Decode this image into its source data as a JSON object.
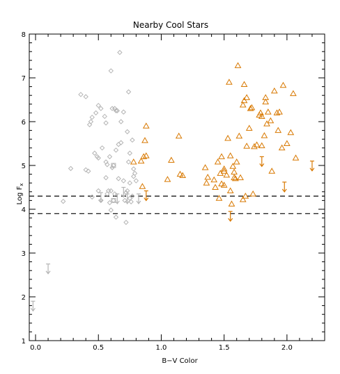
{
  "chart_data": {
    "type": "scatter",
    "title": "Nearby Cool Stars",
    "xlabel": "B−V Color",
    "ylabel": "Log F",
    "ylabel_subscript": "x",
    "xlim": [
      -0.05,
      2.3
    ],
    "ylim": [
      1,
      8
    ],
    "xticks": [
      "0.0",
      "0.5",
      "1.0",
      "1.5",
      "2.0"
    ],
    "xtick_values": [
      0.0,
      0.5,
      1.0,
      1.5,
      2.0
    ],
    "yticks": [
      "1",
      "2",
      "3",
      "4",
      "5",
      "6",
      "7",
      "8"
    ],
    "ytick_values": [
      1,
      2,
      3,
      4,
      5,
      6,
      7,
      8
    ],
    "reference_lines": [
      {
        "y": 4.3,
        "style": "dashed",
        "color": "#000000"
      },
      {
        "y": 3.9,
        "style": "dashed",
        "color": "#000000"
      }
    ],
    "series": [
      {
        "marker": "diamond",
        "color": "#b4b4b4",
        "points": [
          [
            0.22,
            4.18
          ],
          [
            0.28,
            4.93
          ],
          [
            0.36,
            6.62
          ],
          [
            0.4,
            6.57
          ],
          [
            0.42,
            4.87
          ],
          [
            0.43,
            5.93
          ],
          [
            0.44,
            6.0
          ],
          [
            0.45,
            6.1
          ],
          [
            0.47,
            5.28
          ],
          [
            0.48,
            6.2
          ],
          [
            0.49,
            5.2
          ],
          [
            0.5,
            5.17
          ],
          [
            0.5,
            4.42
          ],
          [
            0.52,
            4.2
          ],
          [
            0.5,
            6.37
          ],
          [
            0.52,
            6.3
          ],
          [
            0.53,
            5.4
          ],
          [
            0.55,
            6.12
          ],
          [
            0.56,
            5.97
          ],
          [
            0.56,
            4.72
          ],
          [
            0.56,
            5.08
          ],
          [
            0.57,
            4.35
          ],
          [
            0.57,
            5.02
          ],
          [
            0.58,
            4.42
          ],
          [
            0.59,
            4.15
          ],
          [
            0.59,
            5.2
          ],
          [
            0.6,
            3.98
          ],
          [
            0.6,
            7.16
          ],
          [
            0.61,
            6.3
          ],
          [
            0.61,
            4.95
          ],
          [
            0.62,
            5.0
          ],
          [
            0.62,
            4.2
          ],
          [
            0.63,
            6.3
          ],
          [
            0.64,
            3.82
          ],
          [
            0.64,
            5.35
          ],
          [
            0.64,
            6.25
          ],
          [
            0.65,
            6.25
          ],
          [
            0.66,
            5.48
          ],
          [
            0.66,
            4.7
          ],
          [
            0.67,
            7.58
          ],
          [
            0.68,
            5.52
          ],
          [
            0.68,
            6.0
          ],
          [
            0.7,
            6.22
          ],
          [
            0.7,
            4.65
          ],
          [
            0.71,
            4.2
          ],
          [
            0.72,
            3.7
          ],
          [
            0.72,
            4.38
          ],
          [
            0.73,
            5.77
          ],
          [
            0.74,
            6.68
          ],
          [
            0.74,
            5.08
          ],
          [
            0.75,
            5.28
          ],
          [
            0.75,
            4.6
          ],
          [
            0.76,
            4.17
          ],
          [
            0.77,
            4.3
          ],
          [
            0.78,
            4.92
          ],
          [
            0.78,
            4.75
          ],
          [
            0.79,
            4.82
          ],
          [
            0.8,
            4.65
          ],
          [
            0.77,
            5.58
          ],
          [
            0.73,
            4.42
          ],
          [
            0.6,
            4.42
          ],
          [
            0.63,
            4.35
          ],
          [
            0.75,
            4.25
          ],
          [
            0.4,
            4.9
          ],
          [
            0.45,
            4.28
          ]
        ]
      },
      {
        "marker": "square",
        "color": "#b4b4b4",
        "points": [
          [
            0.62,
            5.0
          ],
          [
            0.62,
            4.2
          ]
        ]
      },
      {
        "marker": "triangle",
        "color": "#d87800",
        "points": [
          [
            0.78,
            5.08
          ],
          [
            0.84,
            5.1
          ],
          [
            0.85,
            4.52
          ],
          [
            0.86,
            5.2
          ],
          [
            0.87,
            5.57
          ],
          [
            0.88,
            5.22
          ],
          [
            0.88,
            5.9
          ],
          [
            1.05,
            4.68
          ],
          [
            1.08,
            5.12
          ],
          [
            1.14,
            5.67
          ],
          [
            1.15,
            4.8
          ],
          [
            1.17,
            4.77
          ],
          [
            1.35,
            4.95
          ],
          [
            1.36,
            4.6
          ],
          [
            1.37,
            4.73
          ],
          [
            1.42,
            4.67
          ],
          [
            1.43,
            4.5
          ],
          [
            1.45,
            5.08
          ],
          [
            1.46,
            4.25
          ],
          [
            1.47,
            4.82
          ],
          [
            1.48,
            5.2
          ],
          [
            1.48,
            4.58
          ],
          [
            1.5,
            4.92
          ],
          [
            1.5,
            4.87
          ],
          [
            1.5,
            4.55
          ],
          [
            1.52,
            4.78
          ],
          [
            1.53,
            5.62
          ],
          [
            1.54,
            6.9
          ],
          [
            1.55,
            4.42
          ],
          [
            1.55,
            5.22
          ],
          [
            1.56,
            4.12
          ],
          [
            1.57,
            4.98
          ],
          [
            1.58,
            4.72
          ],
          [
            1.58,
            4.85
          ],
          [
            1.59,
            4.7
          ],
          [
            1.6,
            5.08
          ],
          [
            1.61,
            7.28
          ],
          [
            1.62,
            5.67
          ],
          [
            1.63,
            4.72
          ],
          [
            1.65,
            4.22
          ],
          [
            1.65,
            6.38
          ],
          [
            1.66,
            6.85
          ],
          [
            1.66,
            6.48
          ],
          [
            1.67,
            4.3
          ],
          [
            1.68,
            5.44
          ],
          [
            1.68,
            6.55
          ],
          [
            1.7,
            5.85
          ],
          [
            1.71,
            6.3
          ],
          [
            1.72,
            6.32
          ],
          [
            1.73,
            4.35
          ],
          [
            1.74,
            5.43
          ],
          [
            1.76,
            5.47
          ],
          [
            1.78,
            6.15
          ],
          [
            1.79,
            6.2
          ],
          [
            1.8,
            6.12
          ],
          [
            1.8,
            5.45
          ],
          [
            1.82,
            5.68
          ],
          [
            1.83,
            6.55
          ],
          [
            1.83,
            6.45
          ],
          [
            1.84,
            5.95
          ],
          [
            1.85,
            6.22
          ],
          [
            1.87,
            6.02
          ],
          [
            1.88,
            4.87
          ],
          [
            1.9,
            6.7
          ],
          [
            1.92,
            6.2
          ],
          [
            1.93,
            5.8
          ],
          [
            1.94,
            6.22
          ],
          [
            1.96,
            5.4
          ],
          [
            1.97,
            6.83
          ],
          [
            2.0,
            5.5
          ],
          [
            2.03,
            5.75
          ],
          [
            2.05,
            6.64
          ],
          [
            2.07,
            5.17
          ]
        ]
      },
      {
        "marker": "upper_limit",
        "color": "#b4b4b4",
        "points": [
          [
            -0.02,
            1.9
          ],
          [
            0.1,
            2.75
          ],
          [
            0.52,
            4.38
          ],
          [
            0.65,
            4.35
          ],
          [
            0.7,
            4.5
          ],
          [
            0.73,
            4.35
          ],
          [
            0.82,
            4.35
          ]
        ]
      },
      {
        "marker": "upper_limit",
        "color": "#d87800",
        "points": [
          [
            0.88,
            4.42
          ],
          [
            1.55,
            3.95
          ],
          [
            1.8,
            5.2
          ],
          [
            1.98,
            4.62
          ],
          [
            2.2,
            5.1
          ]
        ]
      }
    ]
  }
}
